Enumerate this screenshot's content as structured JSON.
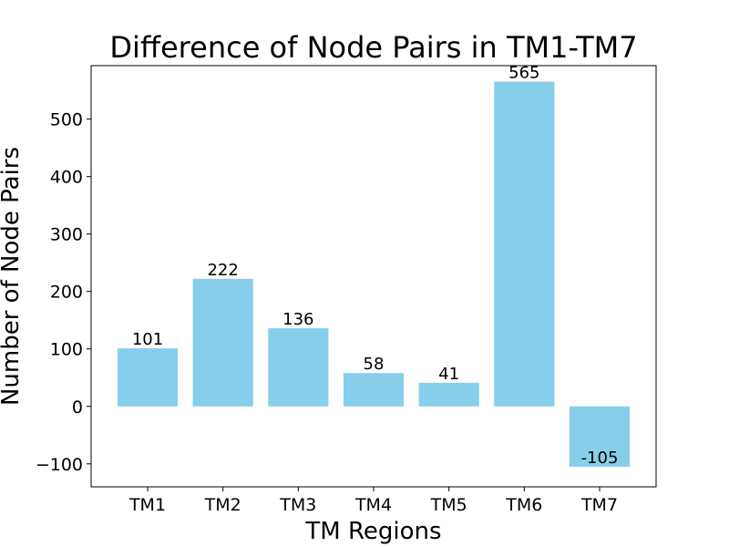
{
  "chart_data": {
    "type": "bar",
    "title": "Difference of Node Pairs in TM1-TM7",
    "xlabel": "TM Regions",
    "ylabel": "Number of Node Pairs",
    "categories": [
      "TM1",
      "TM2",
      "TM3",
      "TM4",
      "TM5",
      "TM6",
      "TM7"
    ],
    "values": [
      101,
      222,
      136,
      58,
      41,
      565,
      -105
    ],
    "data_labels": [
      "101",
      "222",
      "136",
      "58",
      "41",
      "565",
      "-105"
    ],
    "yticks": [
      -100,
      0,
      100,
      200,
      300,
      400,
      500
    ],
    "ytick_labels": [
      "−100",
      "0",
      "100",
      "200",
      "300",
      "400",
      "500"
    ],
    "ylim": [
      -140,
      593
    ],
    "bar_color": "#87CEEB",
    "grid": false,
    "legend": "none"
  }
}
